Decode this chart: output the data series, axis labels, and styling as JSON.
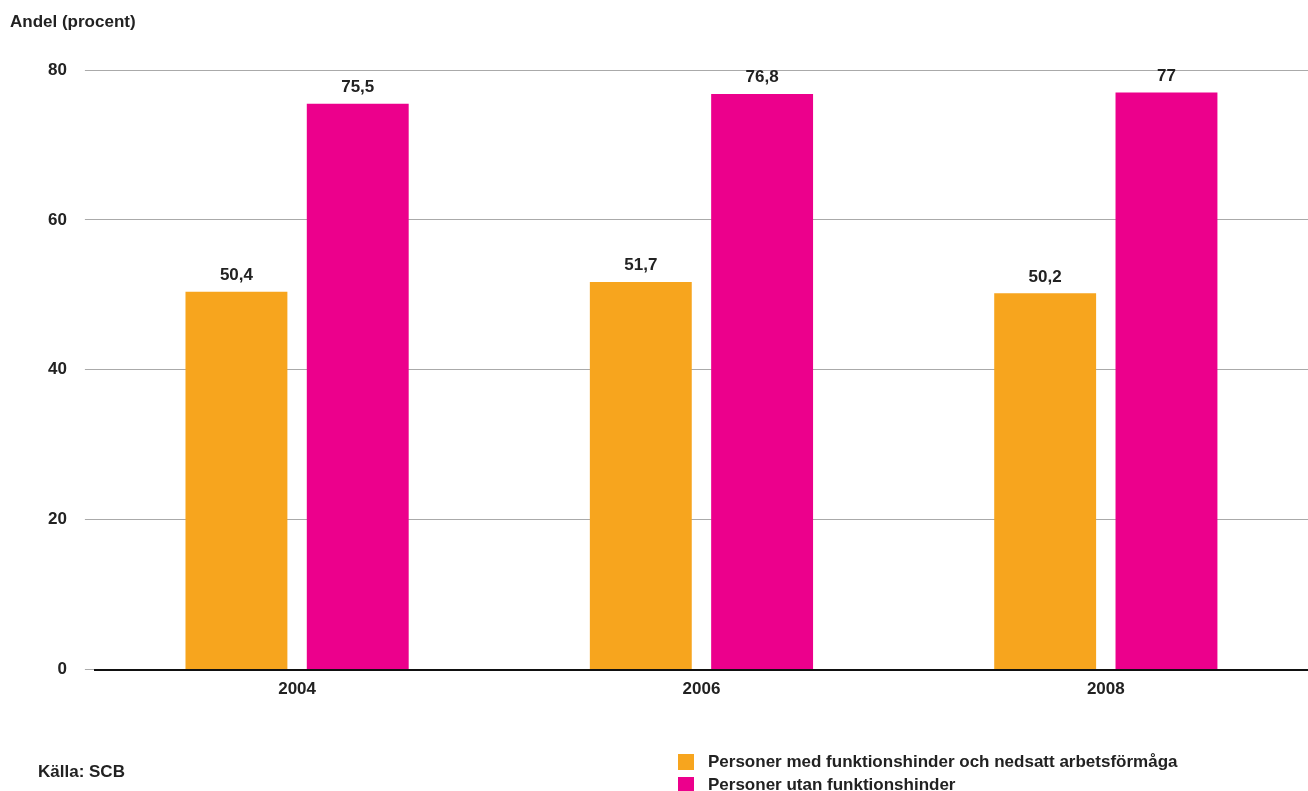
{
  "chart_data": {
    "type": "bar",
    "ylabel": "Andel (procent)",
    "categories": [
      "2004",
      "2006",
      "2008"
    ],
    "series": [
      {
        "name": "Personer med funktionshinder och nedsatt arbetsförmåga",
        "color": "#f7a51e",
        "values": [
          50.4,
          51.7,
          50.2
        ],
        "value_labels": [
          "50,4",
          "51,7",
          "50,2"
        ]
      },
      {
        "name": "Personer utan funktionshinder",
        "color": "#ec008c",
        "values": [
          75.5,
          76.8,
          77
        ],
        "value_labels": [
          "75,5",
          "76,8",
          "77"
        ]
      }
    ],
    "ylim": [
      0,
      80
    ],
    "yticks": [
      0,
      20,
      40,
      60,
      80
    ],
    "grid": "y",
    "legend": "bottom right",
    "annotations": [
      "Källa: SCB"
    ]
  }
}
